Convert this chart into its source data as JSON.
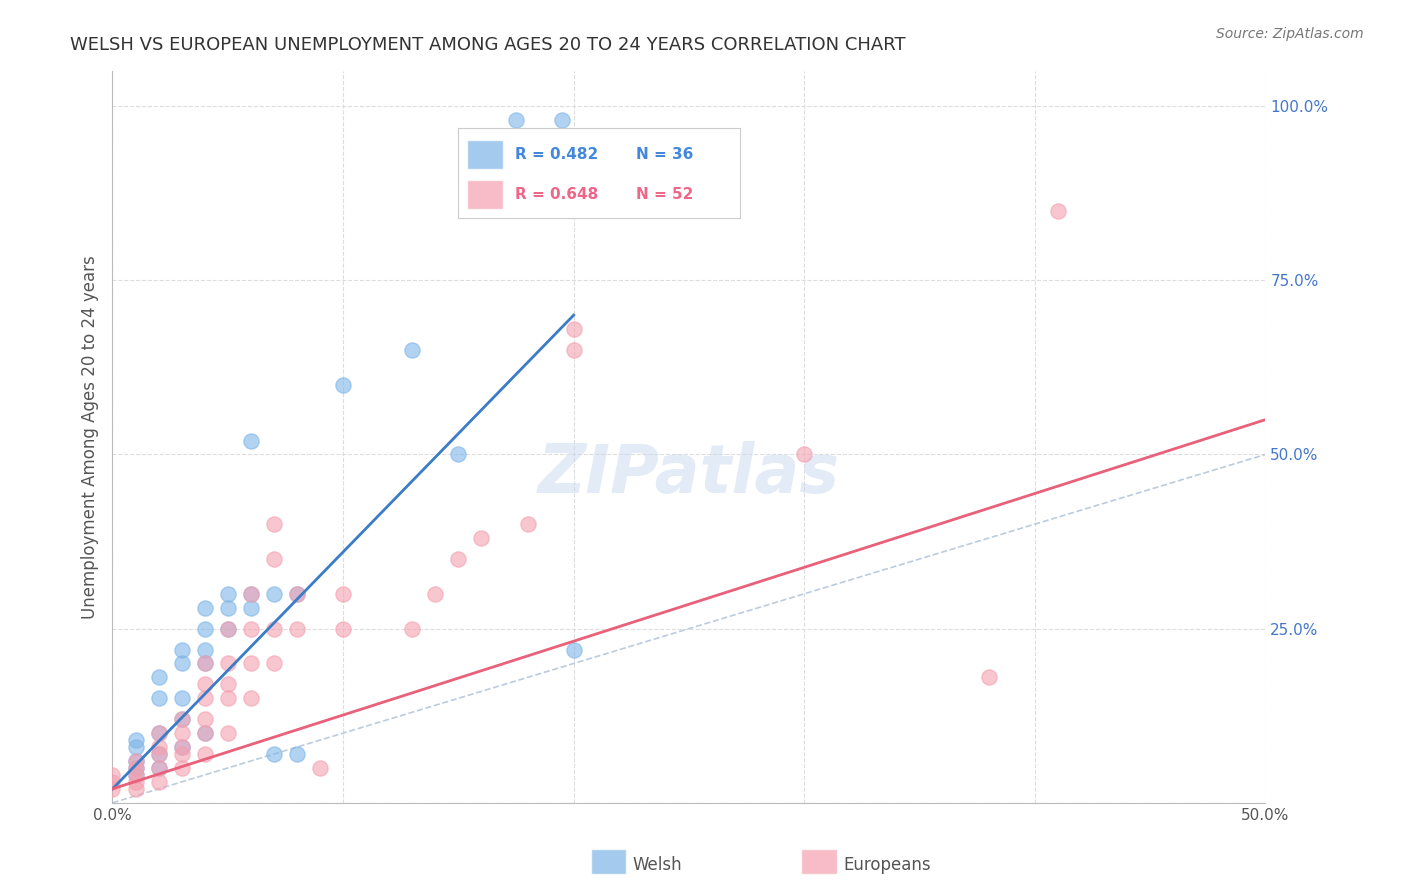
{
  "title": "WELSH VS EUROPEAN UNEMPLOYMENT AMONG AGES 20 TO 24 YEARS CORRELATION CHART",
  "source": "Source: ZipAtlas.com",
  "ylabel": "Unemployment Among Ages 20 to 24 years",
  "xlim": [
    0.0,
    0.5
  ],
  "ylim": [
    0.0,
    1.05
  ],
  "welsh_R": 0.482,
  "welsh_N": 36,
  "euro_R": 0.648,
  "euro_N": 52,
  "welsh_color": "#7EB6E8",
  "euro_color": "#F4A0B0",
  "welsh_line_color": "#3A7CC7",
  "euro_line_color": "#E8607A",
  "diagonal_color": "#BBCCDD",
  "background_color": "#FFFFFF",
  "grid_color": "#DDDDDD",
  "title_color": "#333333",
  "axis_label_color": "#555555",
  "tick_label_color": "#555555",
  "right_tick_color": "#4477CC",
  "legend_label_color_welsh": "#4488DD",
  "legend_label_color_euro": "#EE6688",
  "watermark_color": "#C8D8EE",
  "welsh_scatter": [
    [
      0.01,
      0.04
    ],
    [
      0.01,
      0.05
    ],
    [
      0.01,
      0.06
    ],
    [
      0.01,
      0.08
    ],
    [
      0.01,
      0.09
    ],
    [
      0.02,
      0.05
    ],
    [
      0.02,
      0.07
    ],
    [
      0.02,
      0.1
    ],
    [
      0.02,
      0.15
    ],
    [
      0.02,
      0.18
    ],
    [
      0.03,
      0.08
    ],
    [
      0.03,
      0.12
    ],
    [
      0.03,
      0.15
    ],
    [
      0.03,
      0.2
    ],
    [
      0.03,
      0.22
    ],
    [
      0.04,
      0.1
    ],
    [
      0.04,
      0.2
    ],
    [
      0.04,
      0.22
    ],
    [
      0.04,
      0.25
    ],
    [
      0.04,
      0.28
    ],
    [
      0.05,
      0.25
    ],
    [
      0.05,
      0.28
    ],
    [
      0.05,
      0.3
    ],
    [
      0.06,
      0.28
    ],
    [
      0.06,
      0.3
    ],
    [
      0.06,
      0.52
    ],
    [
      0.07,
      0.07
    ],
    [
      0.07,
      0.3
    ],
    [
      0.08,
      0.07
    ],
    [
      0.08,
      0.3
    ],
    [
      0.1,
      0.6
    ],
    [
      0.13,
      0.65
    ],
    [
      0.15,
      0.5
    ],
    [
      0.175,
      0.98
    ],
    [
      0.195,
      0.98
    ],
    [
      0.2,
      0.22
    ]
  ],
  "euro_scatter": [
    [
      0.0,
      0.02
    ],
    [
      0.0,
      0.03
    ],
    [
      0.0,
      0.04
    ],
    [
      0.01,
      0.02
    ],
    [
      0.01,
      0.03
    ],
    [
      0.01,
      0.04
    ],
    [
      0.01,
      0.05
    ],
    [
      0.01,
      0.06
    ],
    [
      0.02,
      0.03
    ],
    [
      0.02,
      0.05
    ],
    [
      0.02,
      0.07
    ],
    [
      0.02,
      0.08
    ],
    [
      0.02,
      0.1
    ],
    [
      0.03,
      0.05
    ],
    [
      0.03,
      0.07
    ],
    [
      0.03,
      0.08
    ],
    [
      0.03,
      0.1
    ],
    [
      0.03,
      0.12
    ],
    [
      0.04,
      0.07
    ],
    [
      0.04,
      0.1
    ],
    [
      0.04,
      0.12
    ],
    [
      0.04,
      0.15
    ],
    [
      0.04,
      0.17
    ],
    [
      0.04,
      0.2
    ],
    [
      0.05,
      0.1
    ],
    [
      0.05,
      0.15
    ],
    [
      0.05,
      0.17
    ],
    [
      0.05,
      0.2
    ],
    [
      0.05,
      0.25
    ],
    [
      0.06,
      0.15
    ],
    [
      0.06,
      0.2
    ],
    [
      0.06,
      0.25
    ],
    [
      0.06,
      0.3
    ],
    [
      0.07,
      0.2
    ],
    [
      0.07,
      0.25
    ],
    [
      0.07,
      0.35
    ],
    [
      0.07,
      0.4
    ],
    [
      0.08,
      0.25
    ],
    [
      0.08,
      0.3
    ],
    [
      0.09,
      0.05
    ],
    [
      0.1,
      0.25
    ],
    [
      0.1,
      0.3
    ],
    [
      0.13,
      0.25
    ],
    [
      0.14,
      0.3
    ],
    [
      0.15,
      0.35
    ],
    [
      0.16,
      0.38
    ],
    [
      0.18,
      0.4
    ],
    [
      0.2,
      0.65
    ],
    [
      0.2,
      0.68
    ],
    [
      0.3,
      0.5
    ],
    [
      0.38,
      0.18
    ],
    [
      0.41,
      0.85
    ]
  ],
  "welsh_line": [
    [
      0.0,
      0.02
    ],
    [
      0.2,
      0.7
    ]
  ],
  "euro_line": [
    [
      0.0,
      0.02
    ],
    [
      0.5,
      0.55
    ]
  ]
}
